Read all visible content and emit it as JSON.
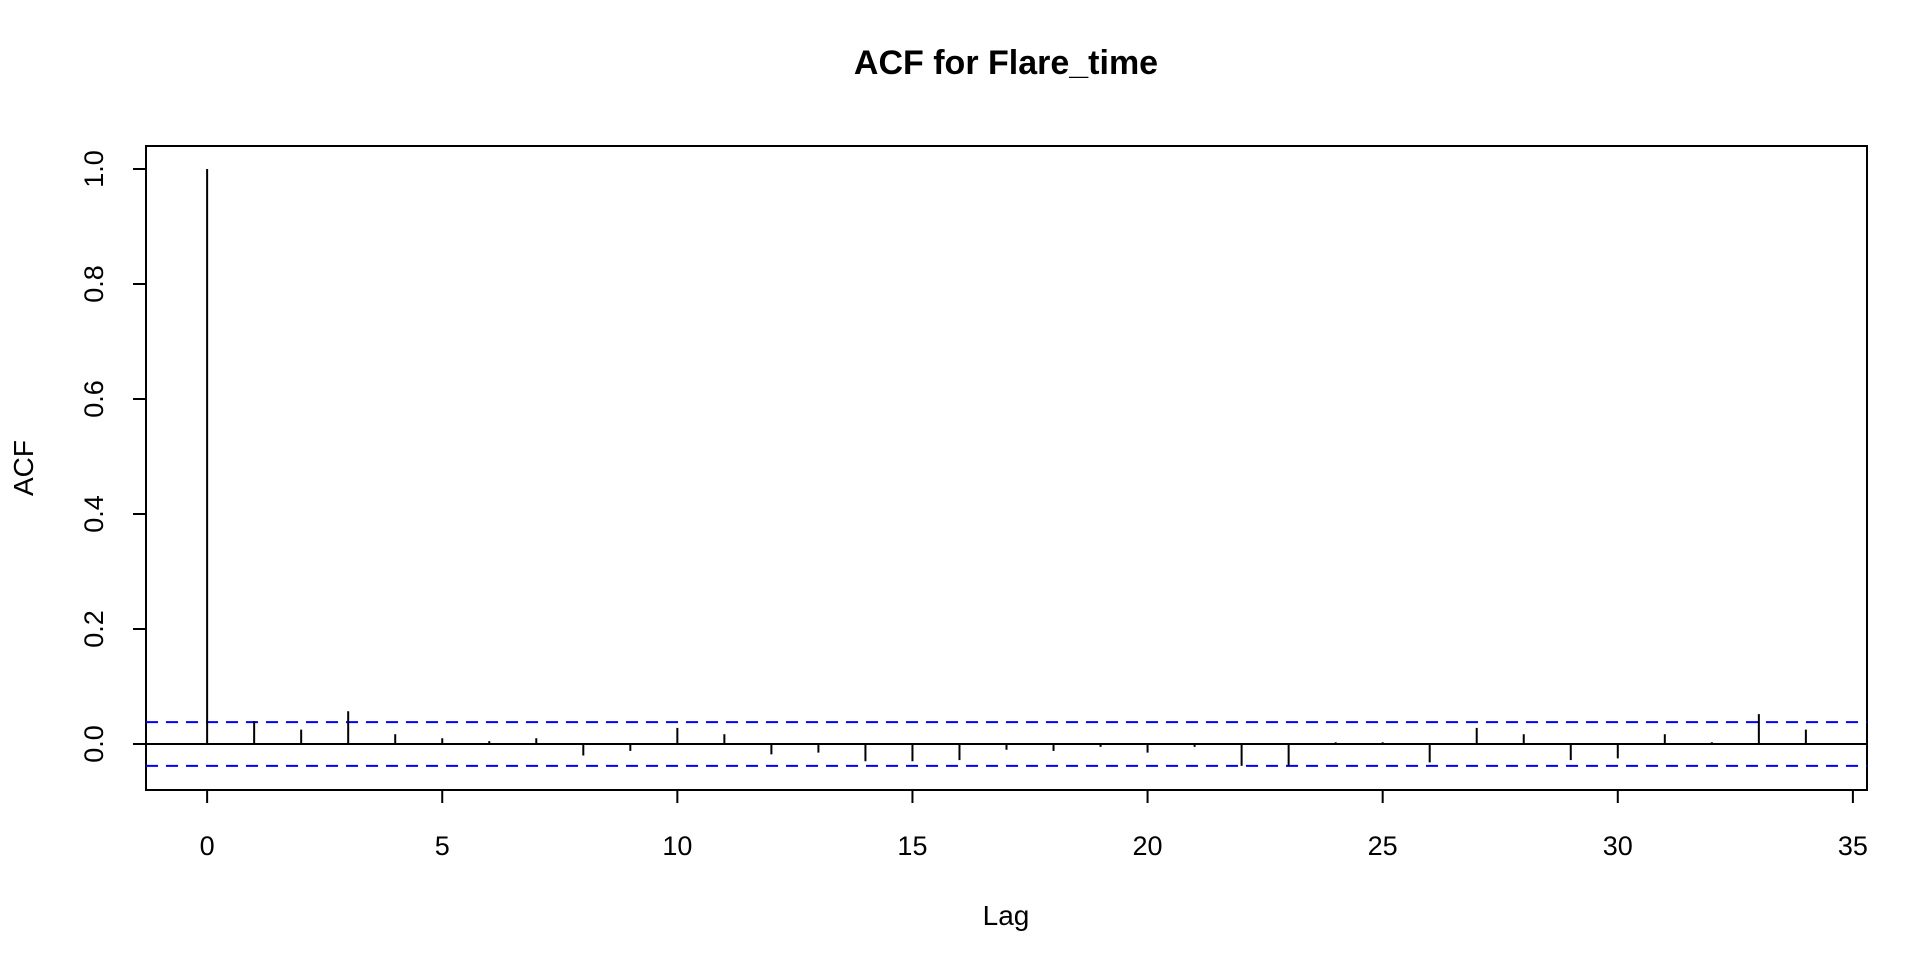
{
  "chart_data": {
    "type": "bar",
    "subtype": "acf-stem",
    "title": "ACF for Flare_time",
    "xlabel": "Lag",
    "ylabel": "ACF",
    "xlim": [
      -1.3,
      35.3
    ],
    "ylim": [
      -0.08,
      1.04
    ],
    "xticks": [
      0,
      5,
      10,
      15,
      20,
      25,
      30,
      35
    ],
    "yticks": [
      0.0,
      0.2,
      0.4,
      0.6,
      0.8,
      1.0
    ],
    "ytick_labels": [
      "0.0",
      "0.2",
      "0.4",
      "0.6",
      "0.8",
      "1.0"
    ],
    "x": [
      0,
      1,
      2,
      3,
      4,
      5,
      6,
      7,
      8,
      9,
      10,
      11,
      12,
      13,
      14,
      15,
      16,
      17,
      18,
      19,
      20,
      21,
      22,
      23,
      24,
      25,
      26,
      27,
      28,
      29,
      30,
      31,
      32,
      33,
      34
    ],
    "values": [
      1.0,
      0.04,
      0.025,
      0.057,
      0.017,
      0.01,
      0.005,
      0.01,
      -0.02,
      -0.012,
      0.028,
      0.017,
      -0.018,
      -0.015,
      -0.03,
      -0.03,
      -0.028,
      -0.01,
      -0.012,
      -0.005,
      -0.015,
      -0.005,
      -0.038,
      -0.038,
      0.003,
      0.003,
      -0.032,
      0.028,
      0.017,
      -0.028,
      -0.025,
      0.017,
      0.003,
      0.052,
      0.025
    ],
    "confidence_bounds": [
      0.038,
      -0.038
    ],
    "colors": {
      "stem": "#000000",
      "confidence": "#0000ff",
      "zero_line": "#000000",
      "frame": "#000000"
    },
    "grid": false,
    "legend": "none"
  }
}
